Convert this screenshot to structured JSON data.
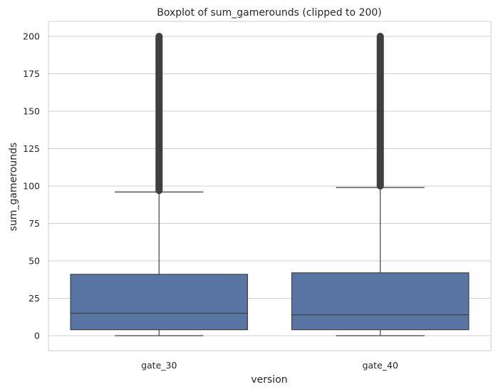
{
  "chart_data": {
    "type": "boxplot",
    "title": "Boxplot of sum_gamerounds (clipped to 200)",
    "xlabel": "version",
    "ylabel": "sum_gamerounds",
    "categories": [
      "gate_30",
      "gate_40"
    ],
    "ylim": [
      -10,
      210
    ],
    "yticks": [
      0,
      25,
      50,
      75,
      100,
      125,
      150,
      175,
      200
    ],
    "grid": true,
    "box_color": "#5875a4",
    "line_color": "#3f3f3f",
    "grid_color": "#cfcfcf",
    "boxes": [
      {
        "category": "gate_30",
        "whisker_low": 0,
        "q1": 4,
        "median": 15,
        "q3": 41,
        "whisker_high": 96,
        "outliers_from": 97,
        "outliers_to": 200
      },
      {
        "category": "gate_40",
        "whisker_low": 0,
        "q1": 4,
        "median": 14,
        "q3": 42,
        "whisker_high": 99,
        "outliers_from": 100,
        "outliers_to": 200
      }
    ]
  }
}
